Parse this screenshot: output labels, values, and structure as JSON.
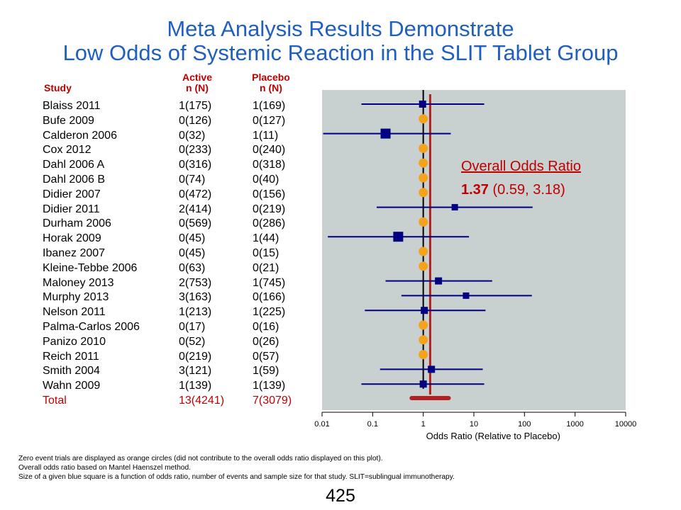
{
  "title": {
    "line1": "Meta Analysis Results Demonstrate",
    "line2": "Low Odds of Systemic Reaction in the SLIT Tablet Group"
  },
  "table": {
    "header_study": "Study",
    "header_active_1": "Active",
    "header_active_2": "n (N)",
    "header_placebo_1": "Placebo",
    "header_placebo_2": "n (N)",
    "rows": [
      {
        "study": "Blaiss 2011",
        "active": "1(175)",
        "placebo": "1(169)"
      },
      {
        "study": "Bufe 2009",
        "active": "0(126)",
        "placebo": "0(127)"
      },
      {
        "study": "Calderon 2006",
        "active": "0(32)",
        "placebo": "1(11)"
      },
      {
        "study": "Cox 2012",
        "active": "0(233)",
        "placebo": "0(240)"
      },
      {
        "study": "Dahl 2006 A",
        "active": "0(316)",
        "placebo": "0(318)"
      },
      {
        "study": "Dahl 2006 B",
        "active": "0(74)",
        "placebo": "0(40)"
      },
      {
        "study": "Didier 2007",
        "active": "0(472)",
        "placebo": "0(156)"
      },
      {
        "study": "Didier 2011",
        "active": "2(414)",
        "placebo": "0(219)"
      },
      {
        "study": "Durham 2006",
        "active": "0(569)",
        "placebo": "0(286)"
      },
      {
        "study": "Horak 2009",
        "active": "0(45)",
        "placebo": "1(44)"
      },
      {
        "study": "Ibanez 2007",
        "active": "0(45)",
        "placebo": "0(15)"
      },
      {
        "study": "Kleine-Tebbe 2006",
        "active": "0(63)",
        "placebo": "0(21)"
      },
      {
        "study": "Maloney 2013",
        "active": "2(753)",
        "placebo": "1(745)"
      },
      {
        "study": "Murphy 2013",
        "active": "3(163)",
        "placebo": "0(166)"
      },
      {
        "study": "Nelson 2011",
        "active": "1(213)",
        "placebo": "1(225)"
      },
      {
        "study": "Palma-Carlos 2006",
        "active": "0(17)",
        "placebo": "0(16)"
      },
      {
        "study": "Panizo 2010",
        "active": "0(52)",
        "placebo": "0(26)"
      },
      {
        "study": "Reich 2011",
        "active": "0(219)",
        "placebo": "0(57)"
      },
      {
        "study": "Smith 2004",
        "active": "3(121)",
        "placebo": "1(59)"
      },
      {
        "study": "Wahn 2009",
        "active": "1(139)",
        "placebo": "1(139)"
      }
    ],
    "total": {
      "study": "Total",
      "active": "13(4241)",
      "placebo": "7(3079)"
    }
  },
  "chart_data": {
    "type": "forest",
    "x_scale": "log",
    "xlim": [
      0.01,
      10000
    ],
    "xlabel": "Odds Ratio (Relative to Placebo)",
    "x_ticks": [
      0.01,
      0.1,
      1,
      10,
      100,
      1000,
      10000
    ],
    "x_tick_labels": [
      "0.01",
      "0.1",
      "1",
      "10",
      "100",
      "1000",
      "10000"
    ],
    "reference_line": 1,
    "studies": [
      {
        "name": "Blaiss 2011",
        "or": 0.97,
        "lo": 0.06,
        "hi": 16,
        "zero_event": false,
        "weight": "medium"
      },
      {
        "name": "Bufe 2009",
        "or": 1,
        "zero_event": true
      },
      {
        "name": "Calderon 2006",
        "or": 0.18,
        "lo": 0.0105,
        "hi": 3.5,
        "zero_event": false,
        "weight": "large"
      },
      {
        "name": "Cox 2012",
        "or": 1,
        "zero_event": true
      },
      {
        "name": "Dahl 2006 A",
        "or": 1,
        "zero_event": true
      },
      {
        "name": "Dahl 2006 B",
        "or": 1,
        "zero_event": true
      },
      {
        "name": "Didier 2007",
        "or": 1,
        "zero_event": true
      },
      {
        "name": "Didier 2011",
        "or": 4.2,
        "lo": 0.12,
        "hi": 145,
        "zero_event": false,
        "weight": "small"
      },
      {
        "name": "Durham 2006",
        "or": 1,
        "zero_event": true
      },
      {
        "name": "Horak 2009",
        "or": 0.32,
        "lo": 0.013,
        "hi": 8,
        "zero_event": false,
        "weight": "large"
      },
      {
        "name": "Ibanez 2007",
        "or": 1,
        "zero_event": true
      },
      {
        "name": "Kleine-Tebbe 2006",
        "or": 1,
        "zero_event": true
      },
      {
        "name": "Maloney 2013",
        "or": 2,
        "lo": 0.18,
        "hi": 23,
        "zero_event": false,
        "weight": "medium"
      },
      {
        "name": "Murphy 2013",
        "or": 7,
        "lo": 0.37,
        "hi": 140,
        "zero_event": false,
        "weight": "small"
      },
      {
        "name": "Nelson 2011",
        "or": 1.05,
        "lo": 0.07,
        "hi": 17,
        "zero_event": false,
        "weight": "medium"
      },
      {
        "name": "Palma-Carlos 2006",
        "or": 1,
        "zero_event": true
      },
      {
        "name": "Panizo 2010",
        "or": 1,
        "zero_event": true
      },
      {
        "name": "Reich 2011",
        "or": 1,
        "zero_event": true
      },
      {
        "name": "Smith 2004",
        "or": 1.45,
        "lo": 0.14,
        "hi": 15,
        "zero_event": false,
        "weight": "medium"
      },
      {
        "name": "Wahn 2009",
        "or": 1,
        "lo": 0.06,
        "hi": 16,
        "zero_event": false,
        "weight": "medium"
      }
    ],
    "overall": {
      "label": "Overall Odds Ratio",
      "or": 1.37,
      "lo": 0.59,
      "hi": 3.18,
      "or_text": "1.37",
      "ci_text": "(0.59, 3.18)"
    },
    "colors": {
      "panel": "#c8d0d0",
      "study": "#000080",
      "zero_event": "#f5a31a",
      "overall": "#b22222",
      "overall_text": "#c00000"
    }
  },
  "footnotes": [
    "Zero event trials are displayed as orange circles (did not contribute to the overall odds ratio displayed on this plot).",
    "Overall  odds ratio based on Mantel Haenszel method.",
    "Size of a given blue square is a function of odds ratio, number of events  and sample size for that study. SLIT=sublingual  immunotherapy."
  ],
  "page_number": "425"
}
